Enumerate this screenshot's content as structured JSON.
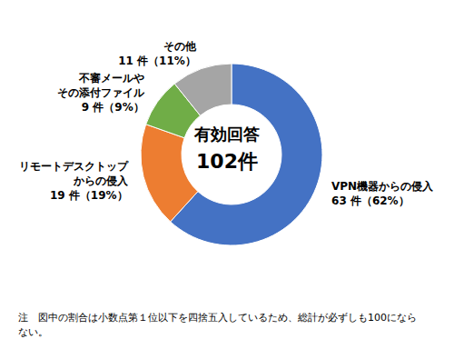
{
  "chart_data": {
    "type": "pie",
    "categories": [
      "VPN機器からの侵入",
      "リモートデスクトップ\nからの侵入",
      "不審メールや\nその添付ファイル",
      "その他"
    ],
    "values": [
      63,
      19,
      9,
      11
    ],
    "value_labels": [
      "63 件（62%）",
      "19 件（19%）",
      "9 件（9%）",
      "11 件（11%）"
    ],
    "colors": [
      "#4472c4",
      "#ed7d31",
      "#70ad47",
      "#a5a5a5"
    ],
    "data_labels": true,
    "annotations": {
      "center": [
        "有効回答",
        "102件"
      ],
      "note": "注　図中の割合は小数点第１位以下を四捨五入しているため、総計が必ずしも100にならない。"
    }
  }
}
